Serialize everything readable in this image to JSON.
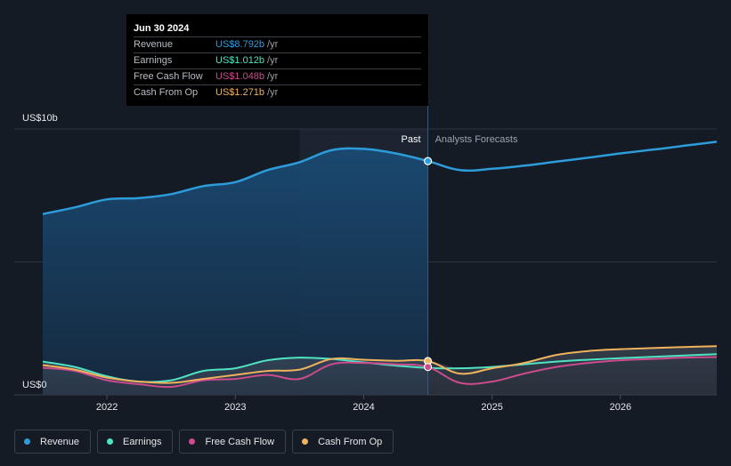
{
  "chart_data": {
    "type": "area",
    "y_axis": {
      "top_label": "US$10b",
      "bottom_label": "US$0",
      "ylim": [
        0,
        10
      ],
      "unit": "US$ billions"
    },
    "x_ticks": [
      "2022",
      "2023",
      "2024",
      "2025",
      "2026"
    ],
    "x_range": [
      2021.5,
      2026.75
    ],
    "divider_x": 2024.5,
    "forecast_shade_start_x": 2023.5,
    "past_label": "Past",
    "forecast_label": "Analysts Forecasts",
    "series": [
      {
        "name": "Revenue",
        "color": "#2d9cdb",
        "points": [
          [
            2021.5,
            6.8
          ],
          [
            2021.75,
            7.05
          ],
          [
            2022.0,
            7.35
          ],
          [
            2022.25,
            7.4
          ],
          [
            2022.5,
            7.55
          ],
          [
            2022.75,
            7.85
          ],
          [
            2023.0,
            8.0
          ],
          [
            2023.25,
            8.45
          ],
          [
            2023.5,
            8.75
          ],
          [
            2023.75,
            9.2
          ],
          [
            2024.0,
            9.25
          ],
          [
            2024.25,
            9.08
          ],
          [
            2024.5,
            8.792
          ],
          [
            2024.75,
            8.45
          ],
          [
            2025.0,
            8.5
          ],
          [
            2025.25,
            8.62
          ],
          [
            2025.5,
            8.77
          ],
          [
            2025.75,
            8.92
          ],
          [
            2026.0,
            9.08
          ],
          [
            2026.25,
            9.22
          ],
          [
            2026.5,
            9.37
          ],
          [
            2026.75,
            9.52
          ]
        ]
      },
      {
        "name": "Earnings",
        "color": "#50e3c2",
        "points": [
          [
            2021.5,
            1.25
          ],
          [
            2021.75,
            1.05
          ],
          [
            2022.0,
            0.7
          ],
          [
            2022.25,
            0.5
          ],
          [
            2022.5,
            0.55
          ],
          [
            2022.75,
            0.9
          ],
          [
            2023.0,
            1.0
          ],
          [
            2023.25,
            1.3
          ],
          [
            2023.5,
            1.4
          ],
          [
            2023.75,
            1.35
          ],
          [
            2024.0,
            1.22
          ],
          [
            2024.25,
            1.1
          ],
          [
            2024.5,
            1.012
          ],
          [
            2024.75,
            1.0
          ],
          [
            2025.0,
            1.05
          ],
          [
            2025.25,
            1.15
          ],
          [
            2025.5,
            1.25
          ],
          [
            2025.75,
            1.32
          ],
          [
            2026.0,
            1.38
          ],
          [
            2026.25,
            1.43
          ],
          [
            2026.5,
            1.48
          ],
          [
            2026.75,
            1.53
          ]
        ]
      },
      {
        "name": "Free Cash Flow",
        "color": "#cc4b8c",
        "points": [
          [
            2021.5,
            1.02
          ],
          [
            2021.75,
            0.9
          ],
          [
            2022.0,
            0.55
          ],
          [
            2022.25,
            0.4
          ],
          [
            2022.5,
            0.3
          ],
          [
            2022.75,
            0.55
          ],
          [
            2023.0,
            0.6
          ],
          [
            2023.25,
            0.75
          ],
          [
            2023.5,
            0.6
          ],
          [
            2023.75,
            1.15
          ],
          [
            2024.0,
            1.2
          ],
          [
            2024.25,
            1.15
          ],
          [
            2024.5,
            1.048
          ],
          [
            2024.75,
            0.45
          ],
          [
            2025.0,
            0.5
          ],
          [
            2025.25,
            0.8
          ],
          [
            2025.5,
            1.05
          ],
          [
            2025.75,
            1.2
          ],
          [
            2026.0,
            1.3
          ],
          [
            2026.25,
            1.35
          ],
          [
            2026.5,
            1.4
          ],
          [
            2026.75,
            1.42
          ]
        ]
      },
      {
        "name": "Cash From Op",
        "color": "#f0b25d",
        "points": [
          [
            2021.5,
            1.12
          ],
          [
            2021.75,
            0.95
          ],
          [
            2022.0,
            0.65
          ],
          [
            2022.25,
            0.5
          ],
          [
            2022.5,
            0.45
          ],
          [
            2022.75,
            0.6
          ],
          [
            2023.0,
            0.75
          ],
          [
            2023.25,
            0.9
          ],
          [
            2023.5,
            0.95
          ],
          [
            2023.75,
            1.35
          ],
          [
            2024.0,
            1.32
          ],
          [
            2024.25,
            1.28
          ],
          [
            2024.5,
            1.271
          ],
          [
            2024.75,
            0.8
          ],
          [
            2025.0,
            1.0
          ],
          [
            2025.25,
            1.2
          ],
          [
            2025.5,
            1.5
          ],
          [
            2025.75,
            1.65
          ],
          [
            2026.0,
            1.72
          ],
          [
            2026.25,
            1.76
          ],
          [
            2026.5,
            1.8
          ],
          [
            2026.75,
            1.83
          ]
        ]
      }
    ]
  },
  "tooltip": {
    "date": "Jun 30 2024",
    "rows": [
      {
        "label": "Revenue",
        "value": "US$8.792b",
        "unit": "/yr",
        "color": "#2d9cdb"
      },
      {
        "label": "Earnings",
        "value": "US$1.012b",
        "unit": "/yr",
        "color": "#50e3c2"
      },
      {
        "label": "Free Cash Flow",
        "value": "US$1.048b",
        "unit": "/yr",
        "color": "#cc4b8c"
      },
      {
        "label": "Cash From Op",
        "value": "US$1.271b",
        "unit": "/yr",
        "color": "#f0b25d"
      }
    ]
  },
  "legend": [
    {
      "label": "Revenue",
      "color": "#2d9cdb"
    },
    {
      "label": "Earnings",
      "color": "#50e3c2"
    },
    {
      "label": "Free Cash Flow",
      "color": "#cc4b8c"
    },
    {
      "label": "Cash From Op",
      "color": "#f0b25d"
    }
  ]
}
